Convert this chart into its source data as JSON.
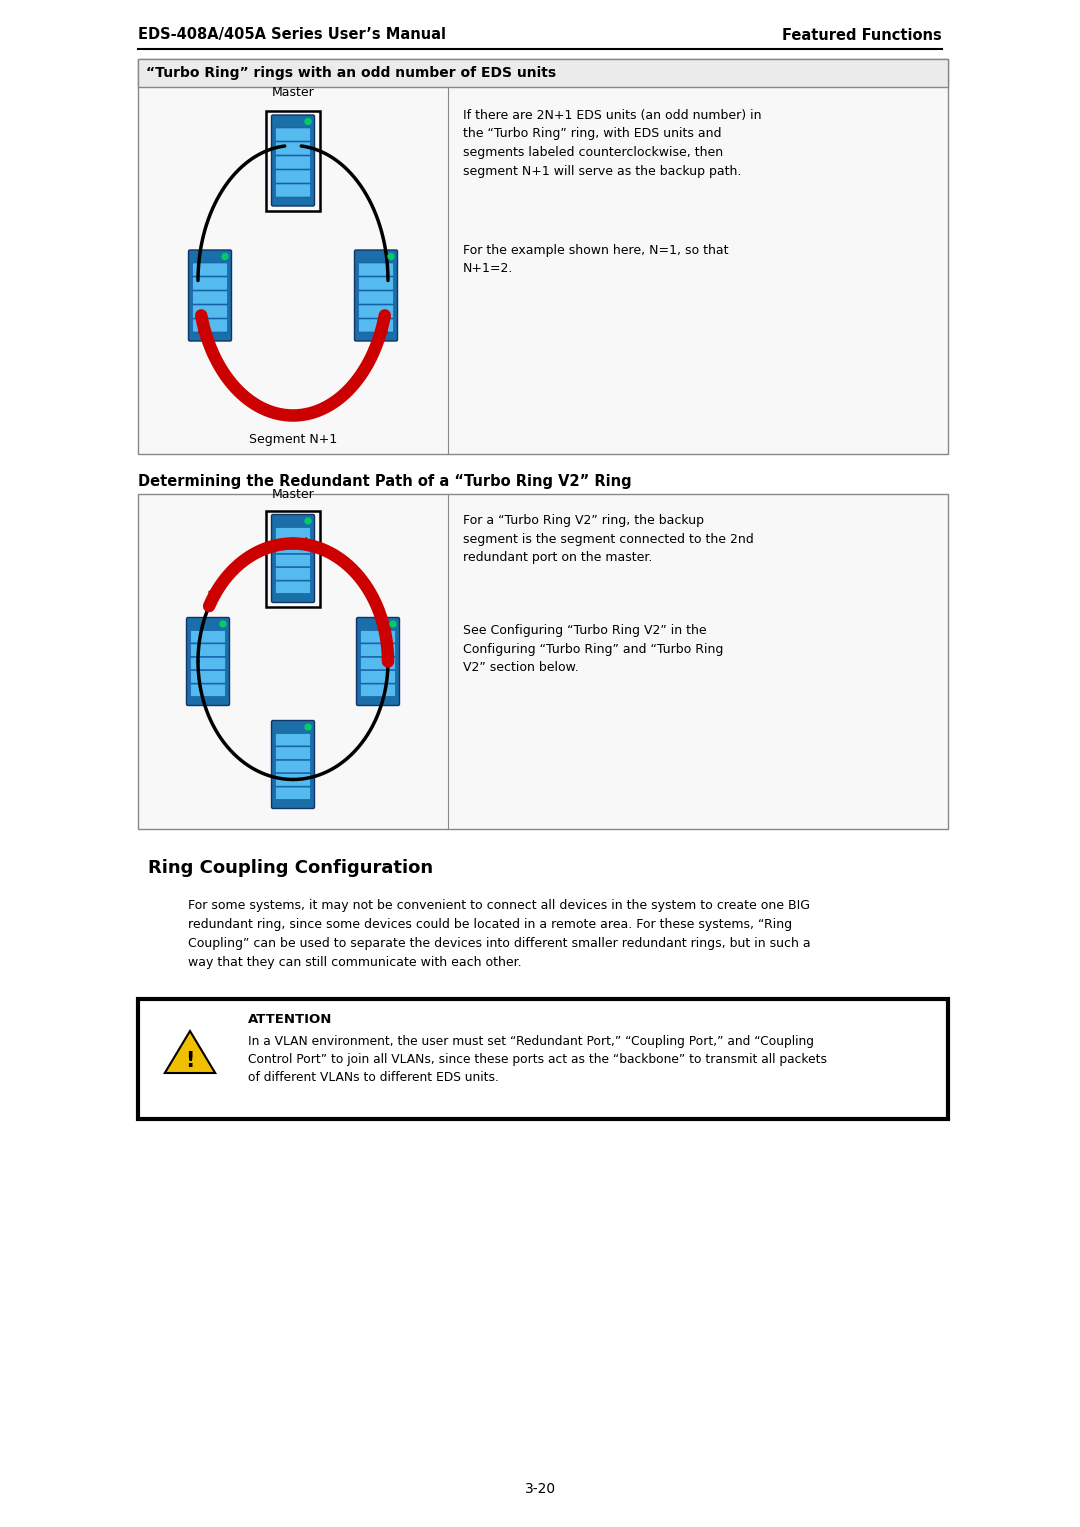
{
  "page_header_left": "EDS-408A/405A Series User’s Manual",
  "page_header_right": "Featured Functions",
  "page_number": "3-20",
  "section1_title": "“Turbo Ring” rings with an odd number of EDS units",
  "section1_text1": "If there are 2N+1 EDS units (an odd number) in\nthe “Turbo Ring” ring, with EDS units and\nsegments labeled counterclockwise, then\nsegment N+1 will serve as the backup path.",
  "section1_text2": "For the example shown here, N=1, so that\nN+1=2.",
  "section1_label_master": "Master",
  "section1_label_segment": "Segment N+1",
  "section2_heading": "Determining the Redundant Path of a “Turbo Ring V2” Ring",
  "section2_label_master": "Master",
  "section2_text1": "For a “Turbo Ring V2” ring, the backup\nsegment is the segment connected to the 2nd\nredundant port on the master.",
  "section2_text2": "See Configuring “Turbo Ring V2” in the\nConfiguring “Turbo Ring” and “Turbo Ring\nV2” section below.",
  "section3_heading": "Ring Coupling Configuration",
  "section3_text": "For some systems, it may not be convenient to connect all devices in the system to create one BIG\nredundant ring, since some devices could be located in a remote area. For these systems, “Ring\nCoupling” can be used to separate the devices into different smaller redundant rings, but in such a\nway that they can still communicate with each other.",
  "attention_title": "ATTENTION",
  "attention_text": "In a VLAN environment, the user must set “Redundant Port,” “Coupling Port,” and “Coupling\nControl Port” to join all VLANs, since these ports act as the “backbone” to transmit all packets\nof different VLANs to different EDS units.",
  "bg_color": "#ffffff",
  "text_color": "#000000",
  "red_color": "#cc0000",
  "switch_body": "#1a6fa8",
  "switch_port": "#55bbee",
  "switch_led": "#00cc66"
}
